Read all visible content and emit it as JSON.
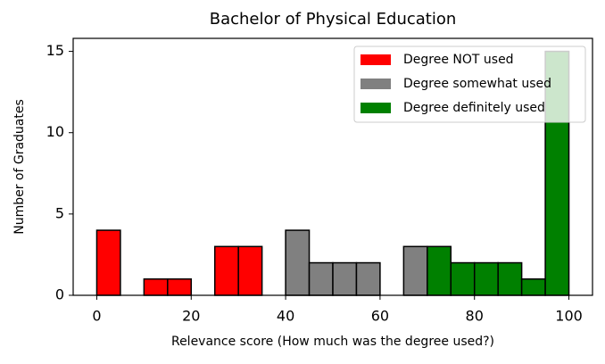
{
  "chart_data": {
    "type": "histogram",
    "title": "Bachelor of Physical Education",
    "x_label": "Relevance score (How much was the degree used?)",
    "y_label": "Number of Graduates",
    "xlim": [
      -5,
      105
    ],
    "xticks": [
      0,
      20,
      40,
      60,
      80,
      100
    ],
    "ylim": [
      0,
      15.8
    ],
    "yticks": [
      0,
      5,
      10,
      15
    ],
    "legend": "upper right",
    "series": [
      {
        "name": "Degree NOT used",
        "color": "#ff0000",
        "bins": [
          0,
          5,
          10,
          15,
          20,
          25,
          30,
          35
        ],
        "values": [
          4,
          0,
          1,
          1,
          0,
          3,
          3
        ]
      },
      {
        "name": "Degree somewhat used",
        "color": "#808080",
        "bins": [
          40,
          45,
          50,
          55,
          60,
          65,
          70
        ],
        "values": [
          4,
          2,
          2,
          2,
          0,
          3
        ]
      },
      {
        "name": "Degree definitely used",
        "color": "#008000",
        "bins": [
          70,
          75,
          80,
          85,
          90,
          95,
          100
        ],
        "values": [
          3,
          2,
          2,
          2,
          1,
          15
        ]
      }
    ]
  }
}
